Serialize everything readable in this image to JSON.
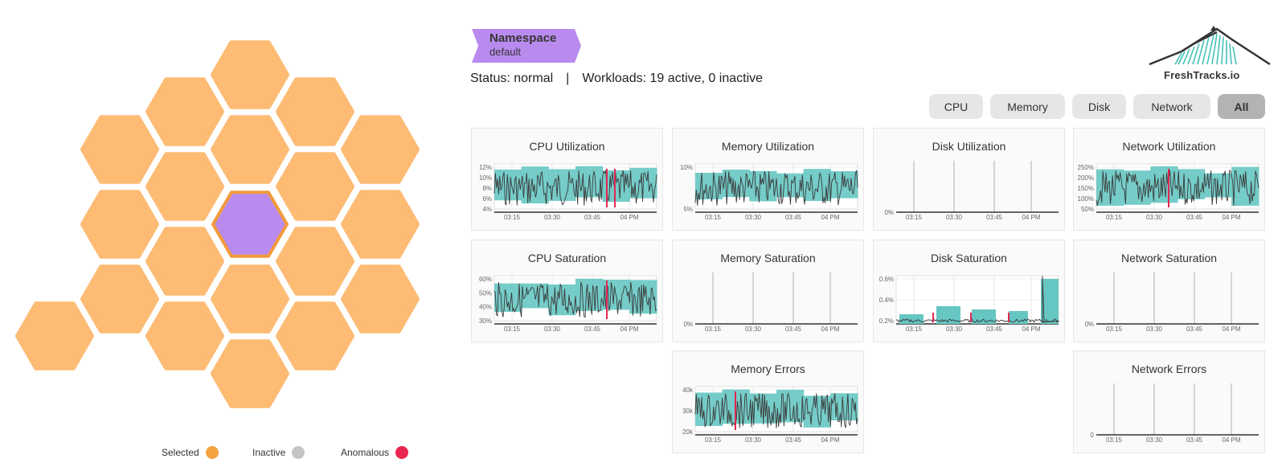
{
  "colors": {
    "hex_normal": "#fdbb74",
    "hex_selected_fill": "#b98bef",
    "hex_selected_border": "#f29a3c",
    "band": "#66c6c2",
    "line": "#3a3a3a",
    "anomaly": "#e02651",
    "legend_selected": "#f4a341",
    "legend_inactive": "#c4c4c4",
    "legend_anomalous": "#e8264f"
  },
  "legend": {
    "selected": "Selected",
    "inactive": "Inactive",
    "anomalous": "Anomalous"
  },
  "namespace": {
    "title": "Namespace",
    "value": "default"
  },
  "status": {
    "status_text": "Status: normal",
    "separator": "|",
    "workloads_text": "Workloads: 19 active, 0 inactive"
  },
  "logo": {
    "text": "FreshTracks.io",
    "icon": "mountain-logo-icon"
  },
  "filters": [
    "CPU",
    "Memory",
    "Disk",
    "Network",
    "All"
  ],
  "filter_selected": "All",
  "x_ticks": [
    "03:15",
    "03:30",
    "03:45",
    "04 PM"
  ],
  "panels": [
    {
      "title": "CPU Utilization",
      "kind": "band",
      "y_ticks": [
        "12%",
        "10%",
        "8%",
        "6%",
        "4%"
      ],
      "anomalies": [
        1,
        2
      ]
    },
    {
      "title": "Memory Utilization",
      "kind": "band",
      "y_ticks": [
        "10%",
        "5%"
      ],
      "anomalies": []
    },
    {
      "title": "Disk Utilization",
      "kind": "flat",
      "y_ticks": [
        "0%"
      ],
      "anomalies": []
    },
    {
      "title": "Network Utilization",
      "kind": "band",
      "y_ticks": [
        "250%",
        "200%",
        "150%",
        "100%",
        "50%"
      ],
      "anomalies": [
        4
      ]
    },
    {
      "title": "CPU Saturation",
      "kind": "band",
      "y_ticks": [
        "60%",
        "50%",
        "40%",
        "30%"
      ],
      "anomalies": [
        3
      ]
    },
    {
      "title": "Memory Saturation",
      "kind": "flat",
      "y_ticks": [
        "0%"
      ],
      "anomalies": []
    },
    {
      "title": "Disk Saturation",
      "kind": "disk",
      "y_ticks": [
        "0.6%",
        "0.4%",
        "0.2%"
      ],
      "anomalies": [
        3
      ]
    },
    {
      "title": "Network Saturation",
      "kind": "flat",
      "y_ticks": [
        "0%"
      ],
      "anomalies": []
    },
    {
      "title": "Memory Errors",
      "kind": "band",
      "y_ticks": [
        "40k",
        "30k",
        "20k"
      ],
      "anomalies": [
        2
      ]
    },
    {
      "title": "Network Errors",
      "kind": "flat",
      "y_ticks": [
        "0"
      ],
      "anomalies": []
    }
  ]
}
